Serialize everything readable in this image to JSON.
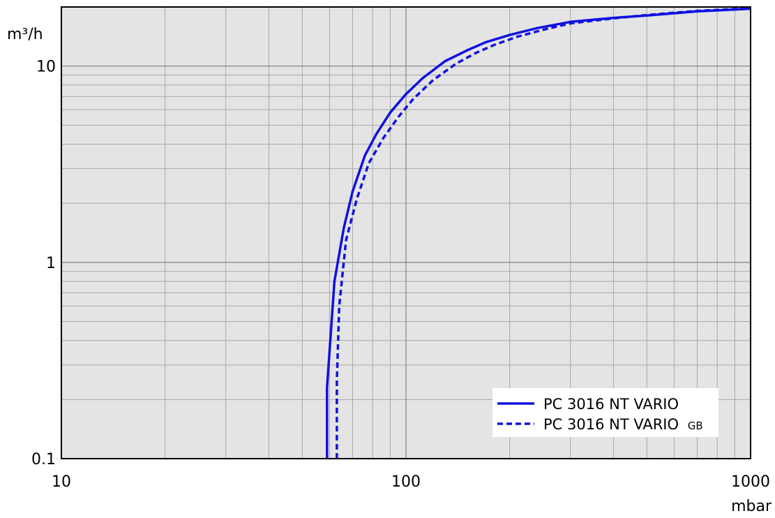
{
  "chart_data": {
    "type": "line",
    "x_scale": "log",
    "y_scale": "log",
    "xlim": [
      10,
      1000
    ],
    "ylim": [
      0.1,
      20
    ],
    "x_unit": "mbar",
    "y_unit": "m³/h",
    "x_ticks": [
      "10",
      "100",
      "1000"
    ],
    "y_ticks": [
      "0.1",
      "1",
      "10"
    ],
    "grid": true,
    "legend_position": "bottom-right",
    "series": [
      {
        "name": "PC 3016 NT VARIO",
        "suffix": "",
        "style": "solid",
        "color": "#1010e0",
        "points": [
          [
            59,
            0.1
          ],
          [
            59,
            0.23
          ],
          [
            62,
            0.8
          ],
          [
            66,
            1.5
          ],
          [
            70,
            2.3
          ],
          [
            76,
            3.5
          ],
          [
            82,
            4.5
          ],
          [
            90,
            5.8
          ],
          [
            100,
            7.2
          ],
          [
            112,
            8.7
          ],
          [
            130,
            10.6
          ],
          [
            150,
            12
          ],
          [
            170,
            13.2
          ],
          [
            200,
            14.4
          ],
          [
            240,
            15.6
          ],
          [
            300,
            16.8
          ],
          [
            400,
            17.6
          ],
          [
            500,
            18.1
          ],
          [
            700,
            19
          ],
          [
            1000,
            19.6
          ]
        ]
      },
      {
        "name": "PC 3016 NT VARIO",
        "suffix": "GB",
        "style": "dashed",
        "color": "#1010e0",
        "points": [
          [
            63,
            0.1
          ],
          [
            63,
            0.25
          ],
          [
            64,
            0.6
          ],
          [
            67,
            1.3
          ],
          [
            72,
            2.1
          ],
          [
            78,
            3.2
          ],
          [
            86,
            4.3
          ],
          [
            95,
            5.5
          ],
          [
            105,
            6.8
          ],
          [
            120,
            8.5
          ],
          [
            140,
            10.3
          ],
          [
            160,
            11.7
          ],
          [
            180,
            12.8
          ],
          [
            210,
            14.1
          ],
          [
            250,
            15.3
          ],
          [
            300,
            16.5
          ],
          [
            400,
            17.5
          ],
          [
            500,
            18.2
          ],
          [
            700,
            19.1
          ],
          [
            1000,
            19.7
          ]
        ]
      }
    ]
  }
}
